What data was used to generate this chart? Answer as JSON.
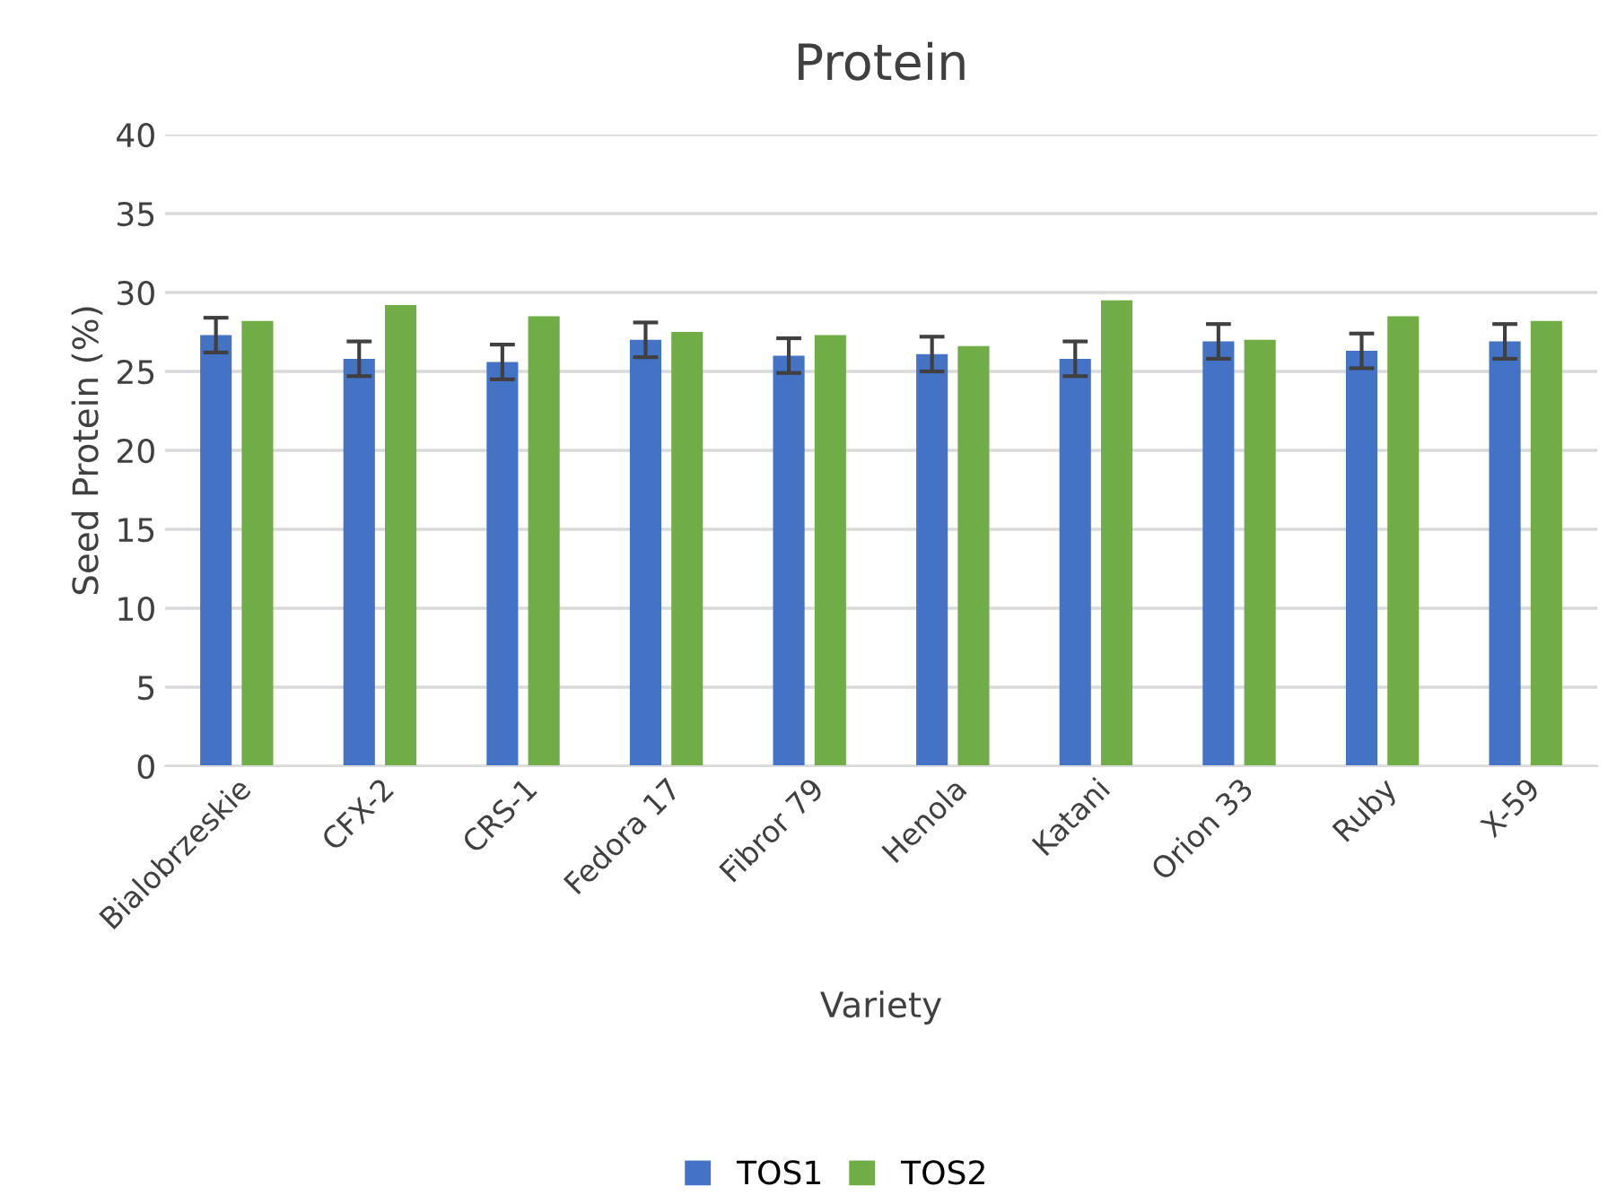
{
  "chart_data": {
    "type": "bar",
    "title": "Protein",
    "xlabel": "Variety",
    "ylabel": "Seed Protein (%)",
    "categories": [
      "Bialobrzeskie",
      "CFX-2",
      "CRS-1",
      "Fedora 17",
      "Fibror 79",
      "Henola",
      "Katani",
      "Orion 33",
      "Ruby",
      "X-59"
    ],
    "series": [
      {
        "name": "TOS1",
        "color": "#4472c4",
        "values": [
          27.3,
          25.8,
          25.6,
          27.0,
          26.0,
          26.1,
          25.8,
          26.9,
          26.3,
          26.9
        ],
        "errors": [
          1.1,
          1.1,
          1.1,
          1.1,
          1.1,
          1.1,
          1.1,
          1.1,
          1.1,
          1.1
        ]
      },
      {
        "name": "TOS2",
        "color": "#70ad47",
        "values": [
          28.2,
          29.2,
          28.5,
          27.5,
          27.3,
          26.6,
          29.5,
          27.0,
          28.5,
          28.2
        ]
      }
    ],
    "ylim": [
      0,
      40
    ],
    "yticks": [
      0,
      5,
      10,
      15,
      20,
      25,
      30,
      35,
      40
    ],
    "grid": "y",
    "legend": "bottom"
  }
}
